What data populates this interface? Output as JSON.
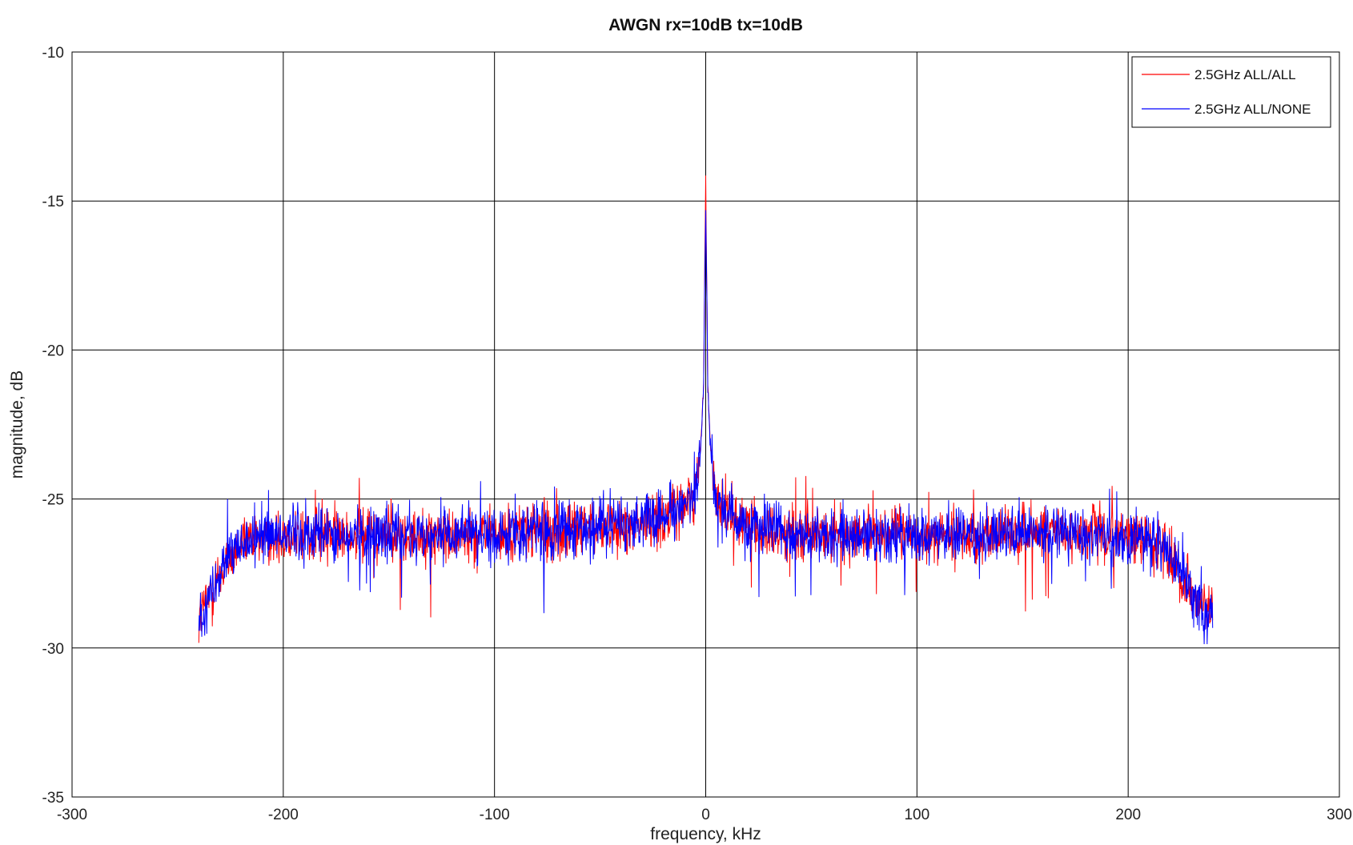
{
  "chart_data": {
    "type": "line",
    "title": "AWGN rx=10dB tx=10dB",
    "xlabel": "frequency, kHz",
    "ylabel": "magnitude, dB",
    "xlim": [
      -300,
      300
    ],
    "ylim": [
      -35,
      -10
    ],
    "xticks": [
      -300,
      -200,
      -100,
      0,
      100,
      200,
      300
    ],
    "yticks": [
      -35,
      -30,
      -25,
      -20,
      -15,
      -10
    ],
    "xtick_labels": [
      "-300",
      "-200",
      "-100",
      "0",
      "100",
      "200",
      "300"
    ],
    "ytick_labels": [
      "-35",
      "-30",
      "-25",
      "-20",
      "-15",
      "-10"
    ],
    "grid": true,
    "legend_position": "top-right",
    "series": [
      {
        "name": "2.5GHz ALL/ALL",
        "color": "#ff0000",
        "x": [
          -240,
          -236,
          -232,
          -228,
          -224,
          -220,
          -215,
          -210,
          -200,
          -180,
          -160,
          -140,
          -120,
          -100,
          -80,
          -60,
          -40,
          -20,
          -10,
          -5,
          -3,
          -2,
          -1,
          -0.5,
          0,
          0.5,
          1,
          2,
          3,
          5,
          10,
          20,
          40,
          60,
          80,
          100,
          120,
          140,
          160,
          180,
          200,
          210,
          215,
          220,
          224,
          228,
          232,
          236,
          240
        ],
        "values": [
          -29.0,
          -28.3,
          -27.7,
          -27.3,
          -26.9,
          -26.6,
          -26.4,
          -26.3,
          -26.2,
          -26.2,
          -26.2,
          -26.2,
          -26.2,
          -26.2,
          -26.1,
          -26.0,
          -25.9,
          -25.6,
          -25.2,
          -24.6,
          -23.8,
          -22.8,
          -21.0,
          -17.5,
          -14.4,
          -17.8,
          -21.2,
          -22.9,
          -23.9,
          -24.8,
          -25.5,
          -25.9,
          -26.1,
          -26.2,
          -26.2,
          -26.2,
          -26.2,
          -26.2,
          -26.2,
          -26.2,
          -26.3,
          -26.4,
          -26.6,
          -26.8,
          -27.3,
          -27.8,
          -28.3,
          -28.7,
          -28.9
        ],
        "noise_amplitude_db": 0.9
      },
      {
        "name": "2.5GHz ALL/NONE",
        "color": "#0000ff",
        "x": [
          -240,
          -236,
          -232,
          -228,
          -224,
          -220,
          -215,
          -210,
          -200,
          -180,
          -160,
          -140,
          -120,
          -100,
          -80,
          -60,
          -40,
          -20,
          -10,
          -5,
          -3,
          -2,
          -1,
          -0.5,
          0,
          0.5,
          1,
          2,
          3,
          5,
          10,
          20,
          40,
          60,
          80,
          100,
          120,
          140,
          160,
          180,
          200,
          210,
          215,
          220,
          224,
          228,
          232,
          236,
          240
        ],
        "values": [
          -29.1,
          -28.4,
          -27.8,
          -27.3,
          -26.9,
          -26.6,
          -26.4,
          -26.3,
          -26.2,
          -26.2,
          -26.2,
          -26.2,
          -26.2,
          -26.2,
          -26.1,
          -26.0,
          -25.9,
          -25.6,
          -25.2,
          -24.7,
          -23.9,
          -22.9,
          -21.1,
          -17.8,
          -15.2,
          -17.9,
          -21.3,
          -23.0,
          -24.0,
          -24.9,
          -25.5,
          -25.9,
          -26.1,
          -26.2,
          -26.2,
          -26.2,
          -26.2,
          -26.2,
          -26.2,
          -26.2,
          -26.3,
          -26.4,
          -26.6,
          -26.8,
          -27.3,
          -27.9,
          -28.4,
          -28.9,
          -29.0
        ],
        "noise_amplitude_db": 0.9
      }
    ]
  }
}
